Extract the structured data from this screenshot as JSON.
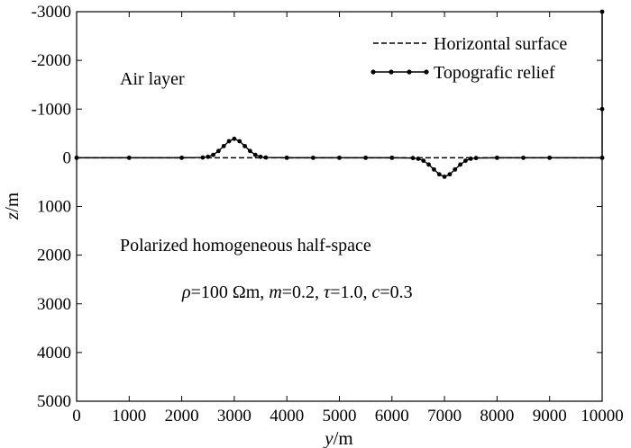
{
  "chart_data": {
    "type": "line",
    "xlabel": {
      "italic": "y",
      "rest": "/m"
    },
    "ylabel": {
      "italic": "z",
      "rest": "/m"
    },
    "xlim": [
      0,
      10000
    ],
    "ylim": [
      -3000,
      5000
    ],
    "y_inverted": true,
    "grid": false,
    "legend_position": "top-right",
    "x_ticks": [
      0,
      1000,
      2000,
      3000,
      4000,
      5000,
      6000,
      7000,
      8000,
      9000,
      10000
    ],
    "y_ticks": [
      -3000,
      -2000,
      -1000,
      0,
      1000,
      2000,
      3000,
      4000,
      5000
    ],
    "series": [
      {
        "name": "Horizontal surface",
        "style": "dashed",
        "x": [
          0,
          10000
        ],
        "y": [
          0,
          0
        ]
      },
      {
        "name": "Topografic relief",
        "style": "solid-dots",
        "x": [
          0,
          1000,
          2000,
          2400,
          2500,
          2600,
          2700,
          2800,
          2900,
          3000,
          3100,
          3200,
          3300,
          3400,
          3500,
          3600,
          4000,
          4500,
          5000,
          5500,
          6000,
          6400,
          6500,
          6600,
          6700,
          6800,
          6900,
          7000,
          7100,
          7200,
          7300,
          7400,
          7500,
          7600,
          8000,
          8500,
          9000,
          10000,
          10000,
          10000
        ],
        "y": [
          0,
          0,
          0,
          -5,
          -20,
          -60,
          -140,
          -240,
          -340,
          -390,
          -340,
          -240,
          -140,
          -60,
          -20,
          -5,
          0,
          0,
          0,
          0,
          0,
          5,
          20,
          60,
          140,
          240,
          340,
          390,
          340,
          240,
          140,
          60,
          20,
          5,
          0,
          0,
          0,
          0,
          -1000,
          -3000
        ]
      }
    ],
    "annotations": {
      "air": "Air layer",
      "halfspace": "Polarized homogeneous half-space",
      "params": [
        {
          "text": "ρ",
          "italic": true
        },
        {
          "text": "=100 Ωm, ",
          "italic": false
        },
        {
          "text": "m",
          "italic": true
        },
        {
          "text": "=0.2, ",
          "italic": false
        },
        {
          "text": "τ",
          "italic": true
        },
        {
          "text": "=1.0, ",
          "italic": false
        },
        {
          "text": "c",
          "italic": true
        },
        {
          "text": "=0.3",
          "italic": false
        }
      ]
    }
  }
}
